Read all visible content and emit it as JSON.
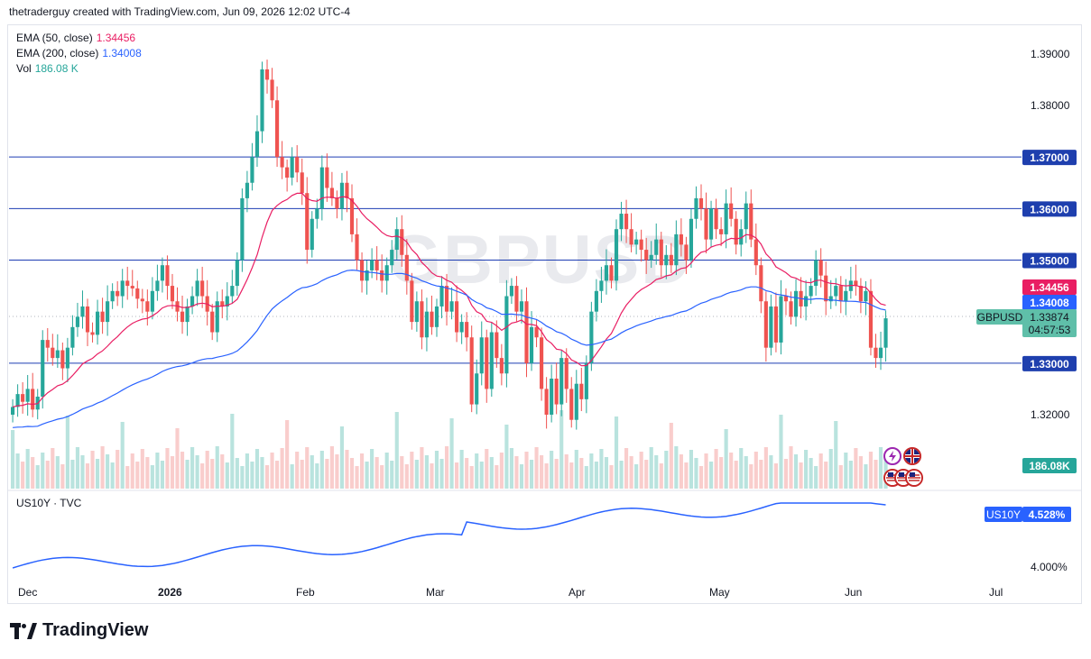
{
  "header": {
    "text": "thetraderguy created with TradingView.com, Jun 09, 2026 12:02 UTC-4"
  },
  "watermark": "GBPUSD",
  "legend": {
    "ema50_label": "EMA (50, close)",
    "ema50_value": "1.34456",
    "ema200_label": "EMA (200, close)",
    "ema200_value": "1.34008",
    "vol_label": "Vol",
    "vol_value": "186.08 K"
  },
  "indicator": {
    "label": "US10Y · TVC",
    "tag": "US10Y",
    "value": "4.528%",
    "tick": "4.000%"
  },
  "price_axis": {
    "ticks": [
      "1.39000",
      "1.38000",
      "1.32000"
    ],
    "levels": [
      "1.37000",
      "1.36000",
      "1.35000",
      "1.33000"
    ],
    "ema50_tag": "1.34456",
    "ema200_tag": "1.34008",
    "symbol_tag": "GBPUSD",
    "last_price": "1.33874",
    "countdown": "04:57:53",
    "volume_tag": "186.08K"
  },
  "time_axis": [
    "Dec",
    "2026",
    "Feb",
    "Mar",
    "Apr",
    "May",
    "Jun",
    "Jul"
  ],
  "colors": {
    "up": "#26a69a",
    "down": "#ef5350",
    "ema50": "#e91e63",
    "ema200": "#2962ff",
    "level": "#0d2c8c",
    "us10y": "#2962ff",
    "last": "#5fbfa9"
  },
  "chart_data": {
    "type": "candlestick",
    "symbol": "GBPUSD",
    "ylim": [
      1.315,
      1.395
    ],
    "horizontal_levels": [
      1.37,
      1.36,
      1.35,
      1.33
    ],
    "ema50_end": 1.34456,
    "ema200_end": 1.34008,
    "last_close": 1.33874,
    "volume_last": "186.08K",
    "closes": [
      1.3215,
      1.324,
      1.3225,
      1.325,
      1.321,
      1.3235,
      1.3345,
      1.333,
      1.331,
      1.3325,
      1.329,
      1.333,
      1.337,
      1.339,
      1.341,
      1.336,
      1.3355,
      1.34,
      1.338,
      1.342,
      1.344,
      1.343,
      1.346,
      1.345,
      1.3445,
      1.3425,
      1.342,
      1.34,
      1.344,
      1.346,
      1.349,
      1.345,
      1.342,
      1.34,
      1.338,
      1.341,
      1.343,
      1.346,
      1.343,
      1.34,
      1.336,
      1.342,
      1.341,
      1.343,
      1.345,
      1.35,
      1.362,
      1.365,
      1.37,
      1.375,
      1.387,
      1.385,
      1.381,
      1.37,
      1.368,
      1.366,
      1.37,
      1.367,
      1.363,
      1.352,
      1.358,
      1.36,
      1.368,
      1.364,
      1.362,
      1.36,
      1.365,
      1.362,
      1.355,
      1.35,
      1.346,
      1.348,
      1.35,
      1.348,
      1.346,
      1.349,
      1.352,
      1.356,
      1.351,
      1.346,
      1.338,
      1.342,
      1.335,
      1.34,
      1.337,
      1.341,
      1.345,
      1.34,
      1.342,
      1.336,
      1.338,
      1.335,
      1.322,
      1.328,
      1.335,
      1.325,
      1.336,
      1.331,
      1.328,
      1.343,
      1.345,
      1.34,
      1.342,
      1.33,
      1.337,
      1.335,
      1.325,
      1.32,
      1.327,
      1.322,
      1.331,
      1.325,
      1.319,
      1.326,
      1.323,
      1.33,
      1.34,
      1.344,
      1.346,
      1.349,
      1.346,
      1.356,
      1.359,
      1.356,
      1.353,
      1.354,
      1.352,
      1.35,
      1.351,
      1.354,
      1.349,
      1.351,
      1.349,
      1.355,
      1.353,
      1.35,
      1.358,
      1.362,
      1.36,
      1.354,
      1.36,
      1.356,
      1.355,
      1.361,
      1.358,
      1.353,
      1.356,
      1.361,
      1.354,
      1.349,
      1.342,
      1.333,
      1.341,
      1.334,
      1.343,
      1.342,
      1.339,
      1.344,
      1.341,
      1.343,
      1.345,
      1.35,
      1.347,
      1.342,
      1.343,
      1.345,
      1.342,
      1.344,
      1.346,
      1.345,
      1.342,
      1.344,
      1.333,
      1.331,
      1.333,
      1.3387
    ]
  }
}
